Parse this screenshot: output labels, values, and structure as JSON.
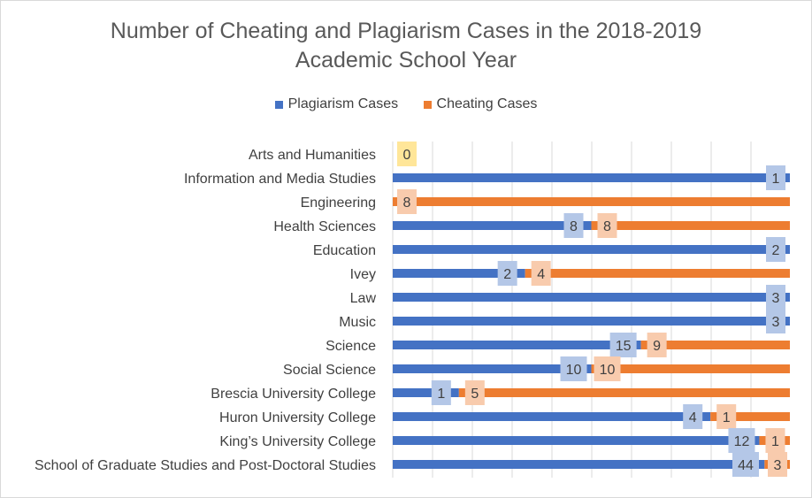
{
  "chart_data": {
    "type": "bar",
    "orientation": "horizontal",
    "stacked": true,
    "title_lines": [
      "Number of Cheating and Plagiarism Cases in the 2018-2019",
      "Academic School Year"
    ],
    "legend_position": "top",
    "categories": [
      "Arts and Humanities",
      "Information and Media Studies",
      "Engineering",
      "Health Sciences",
      "Education",
      "Ivey",
      "Law",
      "Music",
      "Science",
      "Social Science",
      "Brescia University College",
      "Huron University College",
      "King’s University College",
      "School of Graduate Studies and Post-Doctoral Studies"
    ],
    "series": [
      {
        "name": "Plagiarism Cases",
        "color": "#4472C4",
        "label_bg": "#B4C7E7",
        "values": [
          0,
          1,
          0,
          8,
          2,
          2,
          3,
          3,
          15,
          10,
          1,
          4,
          12,
          44
        ]
      },
      {
        "name": "Cheating Cases",
        "color": "#ED7D31",
        "label_bg": "#F8CBAD",
        "values": [
          0,
          0,
          8,
          8,
          0,
          4,
          0,
          0,
          9,
          10,
          5,
          1,
          1,
          3
        ]
      }
    ],
    "data_labels": [
      [
        {
          "text": "0",
          "series": "none"
        }
      ],
      [
        {
          "text": "1",
          "series": 0
        }
      ],
      [
        {
          "text": "8",
          "series": 1
        }
      ],
      [
        {
          "text": "8",
          "series": 0
        },
        {
          "text": "8",
          "series": 1
        }
      ],
      [
        {
          "text": "2",
          "series": 0
        }
      ],
      [
        {
          "text": "2",
          "series": 0
        },
        {
          "text": "4",
          "series": 1
        }
      ],
      [
        {
          "text": "3",
          "series": 0
        }
      ],
      [
        {
          "text": "3",
          "series": 0
        }
      ],
      [
        {
          "text": "15",
          "series": 0
        },
        {
          "text": "9",
          "series": 1
        }
      ],
      [
        {
          "text": "10",
          "series": 0
        },
        {
          "text": "10",
          "series": 1
        }
      ],
      [
        {
          "text": "1",
          "series": 0
        },
        {
          "text": "5",
          "series": 1
        }
      ],
      [
        {
          "text": "4",
          "series": 0
        },
        {
          "text": "1",
          "series": 1
        }
      ],
      [
        {
          "text": "12",
          "series": 0
        },
        {
          "text": "1",
          "series": 1
        }
      ],
      [
        {
          "text": "44",
          "series": 0
        },
        {
          "text": "3",
          "series": 1
        }
      ]
    ],
    "zero_label_bg": "#FFE699",
    "grid": true
  }
}
